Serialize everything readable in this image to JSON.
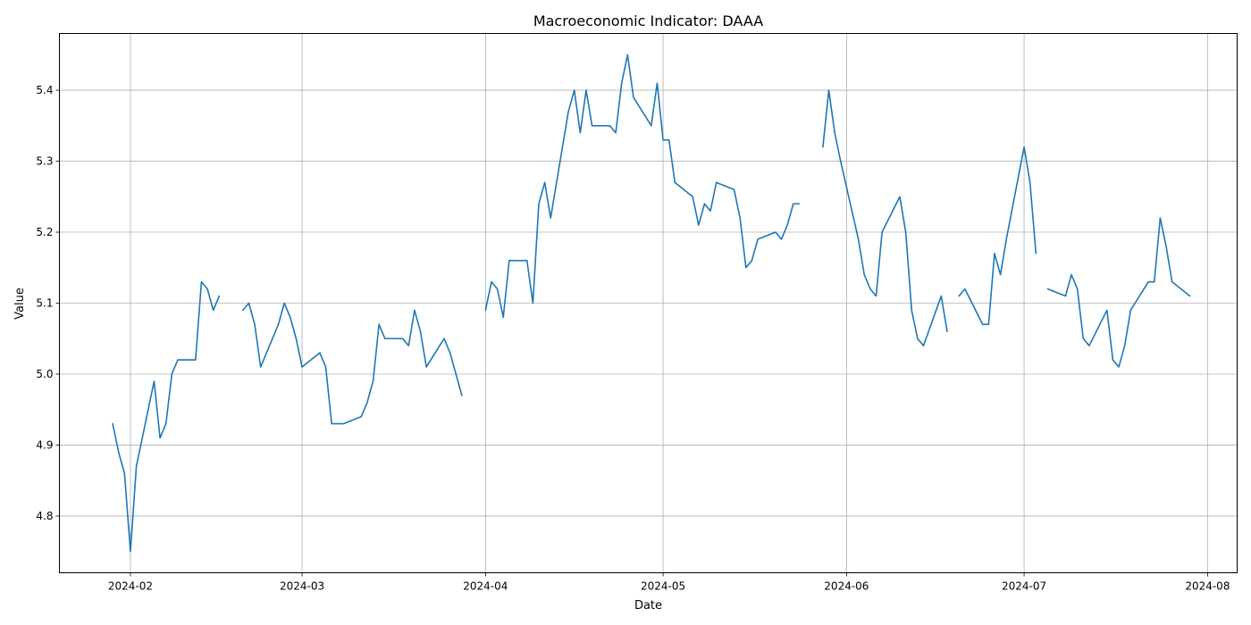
{
  "chart_data": {
    "type": "line",
    "title": "Macroeconomic Indicator: DAAA",
    "xlabel": "Date",
    "ylabel": "Value",
    "grid": true,
    "x_axis_type": "date",
    "xlim": [
      "2024-01-20",
      "2024-08-06"
    ],
    "ylim": [
      4.72,
      5.48
    ],
    "x_ticks": [
      "2024-02-01",
      "2024-03-01",
      "2024-04-01",
      "2024-05-01",
      "2024-06-01",
      "2024-07-01",
      "2024-08-01"
    ],
    "x_tick_labels": [
      "2024-02",
      "2024-03",
      "2024-04",
      "2024-05",
      "2024-06",
      "2024-07",
      "2024-08"
    ],
    "y_ticks": [
      4.8,
      4.9,
      5.0,
      5.1,
      5.2,
      5.3,
      5.4
    ],
    "y_tick_labels": [
      "4.8",
      "4.9",
      "5.0",
      "5.1",
      "5.2",
      "5.3",
      "5.4"
    ],
    "line_color": "#1f77b4",
    "series": [
      {
        "segments": [
          [
            [
              "2024-01-29",
              4.93
            ],
            [
              "2024-01-30",
              4.89
            ],
            [
              "2024-01-31",
              4.86
            ],
            [
              "2024-02-01",
              4.75
            ],
            [
              "2024-02-02",
              4.87
            ],
            [
              "2024-02-05",
              4.99
            ],
            [
              "2024-02-06",
              4.91
            ],
            [
              "2024-02-07",
              4.93
            ],
            [
              "2024-02-08",
              5.0
            ],
            [
              "2024-02-09",
              5.02
            ],
            [
              "2024-02-12",
              5.02
            ],
            [
              "2024-02-13",
              5.13
            ],
            [
              "2024-02-14",
              5.12
            ],
            [
              "2024-02-15",
              5.09
            ],
            [
              "2024-02-16",
              5.11
            ]
          ],
          [
            [
              "2024-02-20",
              5.09
            ],
            [
              "2024-02-21",
              5.1
            ],
            [
              "2024-02-22",
              5.07
            ],
            [
              "2024-02-23",
              5.01
            ],
            [
              "2024-02-26",
              5.07
            ],
            [
              "2024-02-27",
              5.1
            ],
            [
              "2024-02-28",
              5.08
            ],
            [
              "2024-02-29",
              5.05
            ],
            [
              "2024-03-01",
              5.01
            ],
            [
              "2024-03-04",
              5.03
            ],
            [
              "2024-03-05",
              5.01
            ],
            [
              "2024-03-06",
              4.93
            ],
            [
              "2024-03-08",
              4.93
            ],
            [
              "2024-03-11",
              4.94
            ],
            [
              "2024-03-12",
              4.96
            ],
            [
              "2024-03-13",
              4.99
            ],
            [
              "2024-03-14",
              5.07
            ],
            [
              "2024-03-15",
              5.05
            ],
            [
              "2024-03-18",
              5.05
            ],
            [
              "2024-03-19",
              5.04
            ],
            [
              "2024-03-20",
              5.09
            ],
            [
              "2024-03-21",
              5.06
            ],
            [
              "2024-03-22",
              5.01
            ],
            [
              "2024-03-25",
              5.05
            ],
            [
              "2024-03-26",
              5.03
            ],
            [
              "2024-03-28",
              4.97
            ]
          ],
          [
            [
              "2024-04-01",
              5.09
            ],
            [
              "2024-04-02",
              5.13
            ],
            [
              "2024-04-03",
              5.12
            ],
            [
              "2024-04-04",
              5.08
            ],
            [
              "2024-04-05",
              5.16
            ],
            [
              "2024-04-08",
              5.16
            ],
            [
              "2024-04-09",
              5.1
            ],
            [
              "2024-04-10",
              5.24
            ],
            [
              "2024-04-11",
              5.27
            ],
            [
              "2024-04-12",
              5.22
            ],
            [
              "2024-04-15",
              5.37
            ],
            [
              "2024-04-16",
              5.4
            ],
            [
              "2024-04-17",
              5.34
            ],
            [
              "2024-04-18",
              5.4
            ],
            [
              "2024-04-19",
              5.35
            ],
            [
              "2024-04-22",
              5.35
            ],
            [
              "2024-04-23",
              5.34
            ],
            [
              "2024-04-24",
              5.41
            ],
            [
              "2024-04-25",
              5.45
            ],
            [
              "2024-04-26",
              5.39
            ],
            [
              "2024-04-29",
              5.35
            ],
            [
              "2024-04-30",
              5.41
            ],
            [
              "2024-05-01",
              5.33
            ],
            [
              "2024-05-02",
              5.33
            ],
            [
              "2024-05-03",
              5.27
            ],
            [
              "2024-05-06",
              5.25
            ],
            [
              "2024-05-07",
              5.21
            ],
            [
              "2024-05-08",
              5.24
            ],
            [
              "2024-05-09",
              5.23
            ],
            [
              "2024-05-10",
              5.27
            ],
            [
              "2024-05-13",
              5.26
            ],
            [
              "2024-05-14",
              5.22
            ],
            [
              "2024-05-15",
              5.15
            ],
            [
              "2024-05-16",
              5.16
            ],
            [
              "2024-05-17",
              5.19
            ],
            [
              "2024-05-20",
              5.2
            ],
            [
              "2024-05-21",
              5.19
            ],
            [
              "2024-05-22",
              5.21
            ],
            [
              "2024-05-23",
              5.24
            ],
            [
              "2024-05-24",
              5.24
            ]
          ],
          [
            [
              "2024-05-28",
              5.32
            ],
            [
              "2024-05-29",
              5.4
            ],
            [
              "2024-05-30",
              5.34
            ],
            [
              "2024-05-31",
              5.3
            ],
            [
              "2024-06-03",
              5.19
            ],
            [
              "2024-06-04",
              5.14
            ],
            [
              "2024-06-05",
              5.12
            ],
            [
              "2024-06-06",
              5.11
            ],
            [
              "2024-06-07",
              5.2
            ],
            [
              "2024-06-10",
              5.25
            ],
            [
              "2024-06-11",
              5.2
            ],
            [
              "2024-06-12",
              5.09
            ],
            [
              "2024-06-13",
              5.05
            ],
            [
              "2024-06-14",
              5.04
            ],
            [
              "2024-06-17",
              5.11
            ],
            [
              "2024-06-18",
              5.06
            ]
          ],
          [
            [
              "2024-06-20",
              5.11
            ],
            [
              "2024-06-21",
              5.12
            ],
            [
              "2024-06-24",
              5.07
            ],
            [
              "2024-06-25",
              5.07
            ],
            [
              "2024-06-26",
              5.17
            ],
            [
              "2024-06-27",
              5.14
            ],
            [
              "2024-06-28",
              5.19
            ],
            [
              "2024-07-01",
              5.32
            ],
            [
              "2024-07-02",
              5.27
            ],
            [
              "2024-07-03",
              5.17
            ]
          ],
          [
            [
              "2024-07-05",
              5.12
            ],
            [
              "2024-07-08",
              5.11
            ],
            [
              "2024-07-09",
              5.14
            ],
            [
              "2024-07-10",
              5.12
            ],
            [
              "2024-07-11",
              5.05
            ],
            [
              "2024-07-12",
              5.04
            ],
            [
              "2024-07-15",
              5.09
            ],
            [
              "2024-07-16",
              5.02
            ],
            [
              "2024-07-17",
              5.01
            ],
            [
              "2024-07-18",
              5.04
            ],
            [
              "2024-07-19",
              5.09
            ],
            [
              "2024-07-22",
              5.13
            ],
            [
              "2024-07-23",
              5.13
            ],
            [
              "2024-07-24",
              5.22
            ],
            [
              "2024-07-25",
              5.18
            ],
            [
              "2024-07-26",
              5.13
            ],
            [
              "2024-07-29",
              5.11
            ]
          ]
        ]
      }
    ]
  }
}
